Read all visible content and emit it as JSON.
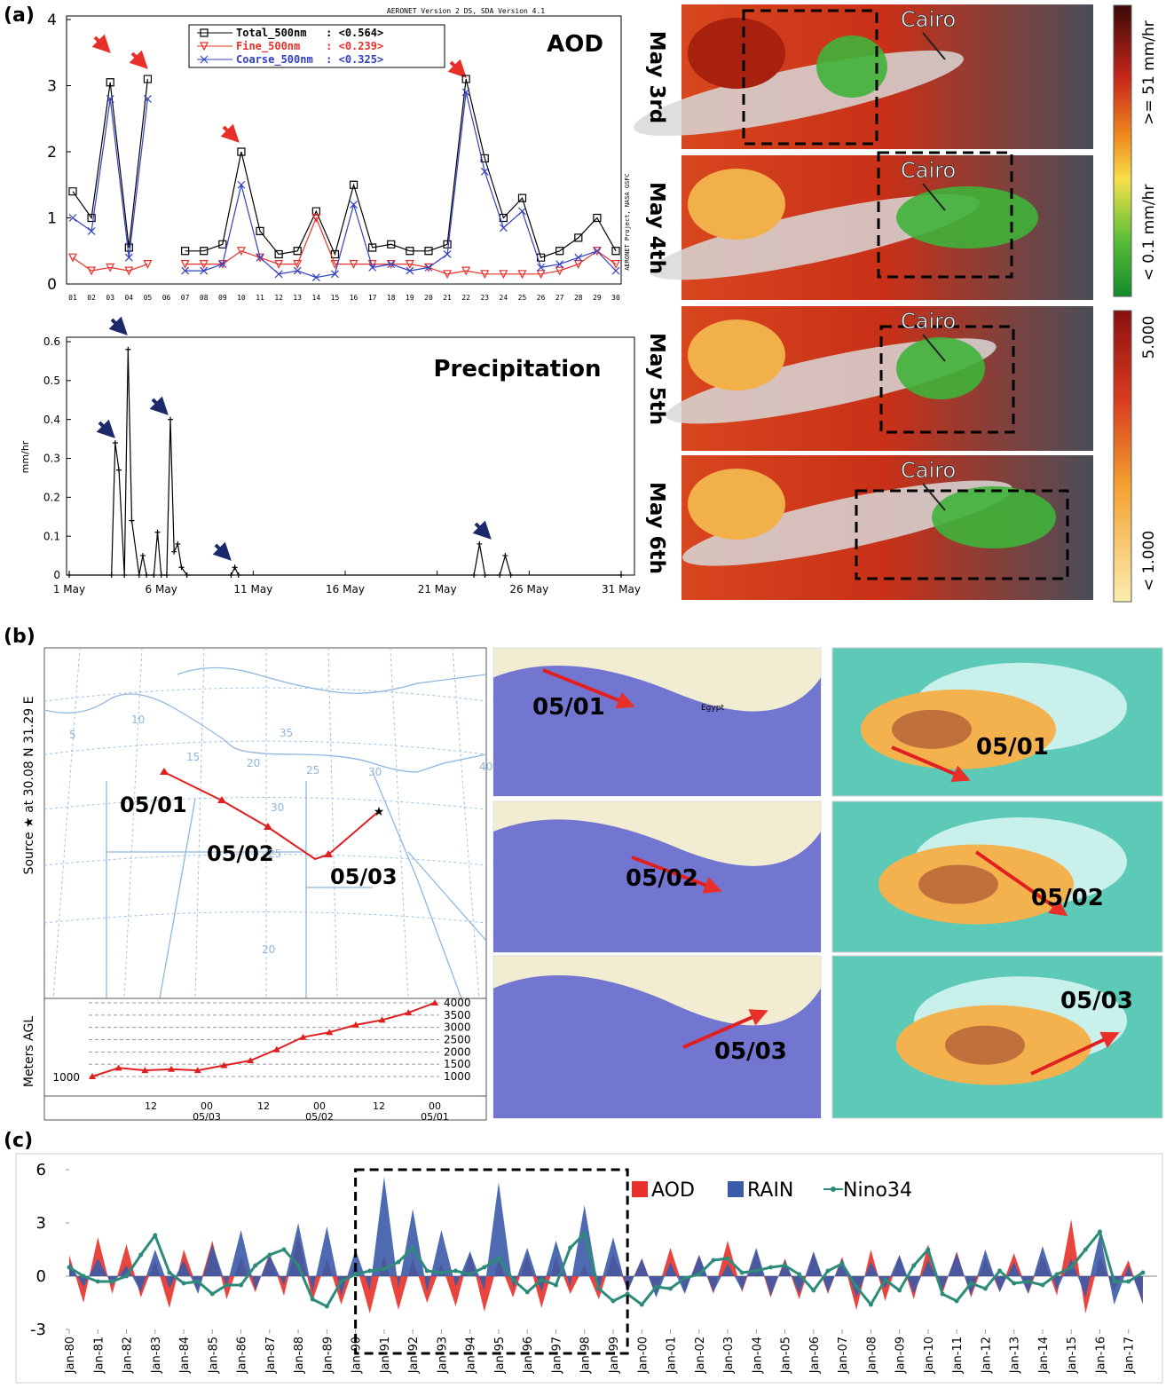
{
  "panel_labels": [
    "(a)",
    "(b)",
    "(c)"
  ],
  "chart_data": [
    {
      "type": "line",
      "title": "AOD",
      "credit": "AERONET Version 2 DS, SDA Version 4.1",
      "side_note": "AERONET Project, NASA GSFC",
      "categories": [
        "01",
        "02",
        "03",
        "04",
        "05",
        "06",
        "07",
        "08",
        "09",
        "10",
        "11",
        "12",
        "13",
        "14",
        "15",
        "16",
        "17",
        "18",
        "19",
        "20",
        "21",
        "22",
        "23",
        "24",
        "25",
        "26",
        "27",
        "28",
        "29",
        "30"
      ],
      "series": [
        {
          "name": "Total_500nm   : <0.564>",
          "color": "#000000",
          "marker": "square",
          "values": [
            1.4,
            1.0,
            3.05,
            0.55,
            3.1,
            null,
            0.5,
            0.5,
            0.6,
            2.0,
            0.8,
            0.45,
            0.5,
            1.1,
            0.45,
            1.5,
            0.55,
            0.6,
            0.5,
            0.5,
            0.6,
            3.1,
            1.9,
            1.0,
            1.3,
            0.4,
            0.5,
            0.7,
            1.0,
            0.5
          ]
        },
        {
          "name": "Fine_500nm    : <0.239>",
          "color": "#e8302a",
          "marker": "triangle",
          "values": [
            0.4,
            0.2,
            0.25,
            0.2,
            0.3,
            null,
            0.3,
            0.3,
            0.3,
            0.5,
            0.4,
            0.3,
            0.3,
            1.0,
            0.3,
            0.3,
            0.3,
            0.3,
            0.3,
            0.25,
            0.15,
            0.2,
            0.15,
            0.15,
            0.15,
            0.15,
            0.2,
            0.3,
            0.5,
            0.3
          ]
        },
        {
          "name": "Coarse_500nm  : <0.325>",
          "color": "#3040c0",
          "marker": "cross",
          "values": [
            1.0,
            0.8,
            2.8,
            0.4,
            2.8,
            null,
            0.2,
            0.2,
            0.3,
            1.5,
            0.4,
            0.15,
            0.2,
            0.1,
            0.15,
            1.2,
            0.25,
            0.3,
            0.2,
            0.25,
            0.45,
            2.9,
            1.7,
            0.85,
            1.1,
            0.25,
            0.3,
            0.4,
            0.5,
            0.2
          ]
        }
      ],
      "ylim": [
        0,
        4
      ],
      "yticks": [
        0,
        1,
        2,
        3,
        4
      ]
    },
    {
      "type": "line",
      "title": "Precipitation",
      "y_label": "mm/hr",
      "color": "#000000",
      "marker": "plus",
      "x": [
        1,
        3.3,
        3.5,
        3.7,
        4.0,
        4.2,
        4.4,
        4.8,
        5.0,
        5.2,
        5.6,
        5.8,
        6.0,
        6.3,
        6.5,
        6.7,
        6.9,
        7.1,
        7.4,
        9.8,
        10.0,
        10.2,
        23.0,
        23.3,
        23.6,
        24.4,
        24.7,
        25.0,
        31
      ],
      "values": [
        0,
        0,
        0.34,
        0.27,
        0,
        0.58,
        0.14,
        0,
        0.05,
        0,
        0,
        0.11,
        0,
        0,
        0.4,
        0.06,
        0.08,
        0.02,
        0,
        0,
        0.02,
        0,
        0,
        0.08,
        0,
        0,
        0.05,
        0,
        0
      ],
      "xlim": [
        1,
        31
      ],
      "xticks": [
        {
          "value": 1,
          "label": "1 May"
        },
        {
          "value": 6,
          "label": "6 May"
        },
        {
          "value": 11,
          "label": "11 May"
        },
        {
          "value": 16,
          "label": "16 May"
        },
        {
          "value": 21,
          "label": "21 May"
        },
        {
          "value": 26,
          "label": "26 May"
        },
        {
          "value": 31,
          "label": "31 May"
        }
      ],
      "ylim": [
        0,
        0.6
      ],
      "yticks": [
        0,
        0.1,
        0.2,
        0.3,
        0.4,
        0.5,
        0.6
      ]
    },
    {
      "type": "area",
      "x": [
        1980,
        1980.5,
        1981,
        1981.5,
        1982,
        1982.5,
        1983,
        1983.5,
        1984,
        1984.5,
        1985,
        1985.5,
        1986,
        1986.5,
        1987,
        1987.5,
        1988,
        1988.5,
        1989,
        1989.5,
        1990,
        1990.5,
        1991,
        1991.5,
        1992,
        1992.5,
        1993,
        1993.5,
        1994,
        1994.5,
        1995,
        1995.5,
        1996,
        1996.5,
        1997,
        1997.5,
        1998,
        1998.5,
        1999,
        1999.5,
        2000,
        2000.5,
        2001,
        2001.5,
        2002,
        2002.5,
        2003,
        2003.5,
        2004,
        2004.5,
        2005,
        2005.5,
        2006,
        2006.5,
        2007,
        2007.5,
        2008,
        2008.5,
        2009,
        2009.5,
        2010,
        2010.5,
        2011,
        2011.5,
        2012,
        2012.5,
        2013,
        2013.5,
        2014,
        2014.5,
        2015,
        2015.5,
        2016,
        2016.5,
        2017,
        2017.5
      ],
      "series": [
        {
          "name": "AOD",
          "color": "#e8302a",
          "values": [
            1.2,
            -1.5,
            2.2,
            -1.0,
            1.8,
            -1.2,
            0.9,
            -1.8,
            1.5,
            -0.8,
            2.0,
            -1.3,
            1.1,
            -0.9,
            1.3,
            -1.1,
            2.3,
            -1.4,
            1.0,
            -1.6,
            0.8,
            -2.1,
            1.2,
            -1.9,
            1.0,
            -1.5,
            0.7,
            -1.7,
            1.4,
            -2.0,
            0.9,
            -1.2,
            1.2,
            -1.8,
            1.1,
            -1.0,
            0.6,
            -1.3,
            1.3,
            -0.8,
            1.0,
            -1.1,
            1.6,
            -0.9,
            1.2,
            -1.0,
            2.0,
            -0.9,
            1.4,
            -1.2,
            1.0,
            -1.3,
            1.3,
            -1.0,
            1.1,
            -1.9,
            1.5,
            -1.4,
            1.2,
            -1.3,
            1.8,
            -1.0,
            1.4,
            -1.2,
            1.0,
            -0.9,
            1.3,
            -1.0,
            1.2,
            -1.1,
            3.2,
            -2.1,
            1.1,
            -0.8,
            0.9,
            -1.6
          ]
        },
        {
          "name": "RAIN",
          "color": "#3b5ba9",
          "values": [
            0.8,
            -0.6,
            1.0,
            -0.5,
            0.6,
            -0.9,
            1.5,
            -0.7,
            0.9,
            -1.0,
            1.8,
            -0.6,
            2.6,
            -0.8,
            1.2,
            -0.5,
            3.0,
            -0.9,
            2.8,
            -1.1,
            1.5,
            -0.8,
            5.6,
            -0.7,
            3.8,
            -0.9,
            2.6,
            -0.6,
            1.4,
            -0.8,
            5.3,
            -0.7,
            1.6,
            -0.9,
            2.0,
            -0.6,
            4.0,
            -0.8,
            2.2,
            -0.9,
            1.0,
            -1.2,
            0.8,
            -1.0,
            1.2,
            -0.9,
            0.7,
            -0.8,
            1.6,
            -1.1,
            0.9,
            -1.0,
            1.4,
            -0.9,
            1.0,
            -1.2,
            0.8,
            -0.7,
            1.2,
            -1.0,
            0.9,
            -0.8,
            1.3,
            -1.1,
            1.5,
            -0.9,
            0.8,
            -1.0,
            1.7,
            -0.8,
            1.0,
            -1.2,
            2.4,
            -1.6,
            0.6,
            -1.5
          ]
        },
        {
          "name": "Nino34",
          "color": "#2e8b7a",
          "style": "line",
          "values": [
            0.5,
            0.0,
            -0.3,
            -0.3,
            0.0,
            1.2,
            2.3,
            0.2,
            -0.4,
            -0.3,
            -1.0,
            -0.5,
            -0.5,
            0.6,
            1.2,
            1.5,
            0.6,
            -1.3,
            -1.7,
            -0.3,
            0.1,
            0.3,
            0.4,
            0.8,
            1.6,
            0.3,
            0.2,
            0.3,
            0.1,
            0.5,
            1.0,
            -0.2,
            -0.9,
            -0.2,
            -0.5,
            1.6,
            2.4,
            -0.7,
            -1.4,
            -1.0,
            -1.6,
            -0.6,
            -0.7,
            -0.1,
            0.1,
            0.9,
            1.0,
            0.2,
            0.3,
            0.5,
            0.6,
            0.1,
            -0.8,
            0.3,
            0.7,
            -0.6,
            -1.6,
            -0.2,
            -0.8,
            0.6,
            1.5,
            -1.0,
            -1.4,
            -0.4,
            -0.7,
            0.3,
            -0.4,
            -0.3,
            -0.5,
            0.1,
            0.5,
            1.5,
            2.5,
            -0.3,
            -0.3,
            0.2
          ]
        }
      ],
      "xlim": [
        1980,
        2018
      ],
      "xticks": [
        {
          "value": 1980,
          "label": "Jan-80"
        },
        {
          "value": 1981,
          "label": "Jan-81"
        },
        {
          "value": 1982,
          "label": "Jan-82"
        },
        {
          "value": 1983,
          "label": "Jan-83"
        },
        {
          "value": 1984,
          "label": "Jan-84"
        },
        {
          "value": 1985,
          "label": "Jan-85"
        },
        {
          "value": 1986,
          "label": "Jan-86"
        },
        {
          "value": 1987,
          "label": "Jan-87"
        },
        {
          "value": 1988,
          "label": "Jan-88"
        },
        {
          "value": 1989,
          "label": "Jan-89"
        },
        {
          "value": 1990,
          "label": "Jan-90"
        },
        {
          "value": 1991,
          "label": "Jan-91"
        },
        {
          "value": 1992,
          "label": "Jan-92"
        },
        {
          "value": 1993,
          "label": "Jan-93"
        },
        {
          "value": 1994,
          "label": "Jan-94"
        },
        {
          "value": 1995,
          "label": "Jan-95"
        },
        {
          "value": 1996,
          "label": "Jan-96"
        },
        {
          "value": 1997,
          "label": "Jan-97"
        },
        {
          "value": 1998,
          "label": "Jan-98"
        },
        {
          "value": 1999,
          "label": "Jan-99"
        },
        {
          "value": 2000,
          "label": "Jan-00"
        },
        {
          "value": 2001,
          "label": "Jan-01"
        },
        {
          "value": 2002,
          "label": "Jan-02"
        },
        {
          "value": 2003,
          "label": "Jan-03"
        },
        {
          "value": 2004,
          "label": "Jan-04"
        },
        {
          "value": 2005,
          "label": "Jan-05"
        },
        {
          "value": 2006,
          "label": "Jan-06"
        },
        {
          "value": 2007,
          "label": "Jan-07"
        },
        {
          "value": 2008,
          "label": "Jan-08"
        },
        {
          "value": 2009,
          "label": "Jan-09"
        },
        {
          "value": 2010,
          "label": "Jan-10"
        },
        {
          "value": 2011,
          "label": "Jan-11"
        },
        {
          "value": 2012,
          "label": "Jan-12"
        },
        {
          "value": 2013,
          "label": "Jan-13"
        },
        {
          "value": 2014,
          "label": "Jan-14"
        },
        {
          "value": 2015,
          "label": "Jan-15"
        },
        {
          "value": 2016,
          "label": "Jan-16"
        },
        {
          "value": 2017,
          "label": "Jan-17"
        }
      ],
      "ylim": [
        -3,
        6
      ],
      "yticks": [
        -3,
        0,
        3,
        6
      ],
      "highlight": [
        1990,
        1999.5
      ]
    }
  ],
  "satellite": {
    "dates": [
      "May 3rd",
      "May 4th",
      "May 5th",
      "May 6th"
    ],
    "city": "Cairo",
    "rain_scale": {
      "top": ">= 51 mm/hr",
      "bottom": "< 0.1 mm/hr"
    },
    "aod_scale": {
      "top": "5.000",
      "bottom": "< 1.000"
    }
  },
  "trajectory": {
    "source_label": "Source ★ at   30.08 N   31.29 E",
    "dates": [
      "05/01",
      "05/02",
      "05/03"
    ],
    "grid_labels": [
      "5",
      "10",
      "15",
      "20",
      "25",
      "30",
      "35",
      "30",
      "25",
      "20",
      "40"
    ],
    "y_label": "Meters AGL",
    "start_label": "1000",
    "ylim": [
      1000,
      4000
    ],
    "yticks": [
      4000,
      3500,
      3000,
      2500,
      2000,
      1500,
      1000
    ],
    "heights": [
      1000,
      1350,
      1250,
      1300,
      1250,
      1450,
      1650,
      2100,
      2600,
      2800,
      3100,
      3300,
      3600,
      4000
    ],
    "hour_labels": [
      "12",
      "00",
      "12",
      "00",
      "12",
      "00"
    ],
    "day_labels": [
      "05/03",
      "05/02",
      "05/01"
    ]
  },
  "maps": {
    "dates": [
      "05/01",
      "05/02",
      "05/03"
    ],
    "country": "Egypt"
  }
}
